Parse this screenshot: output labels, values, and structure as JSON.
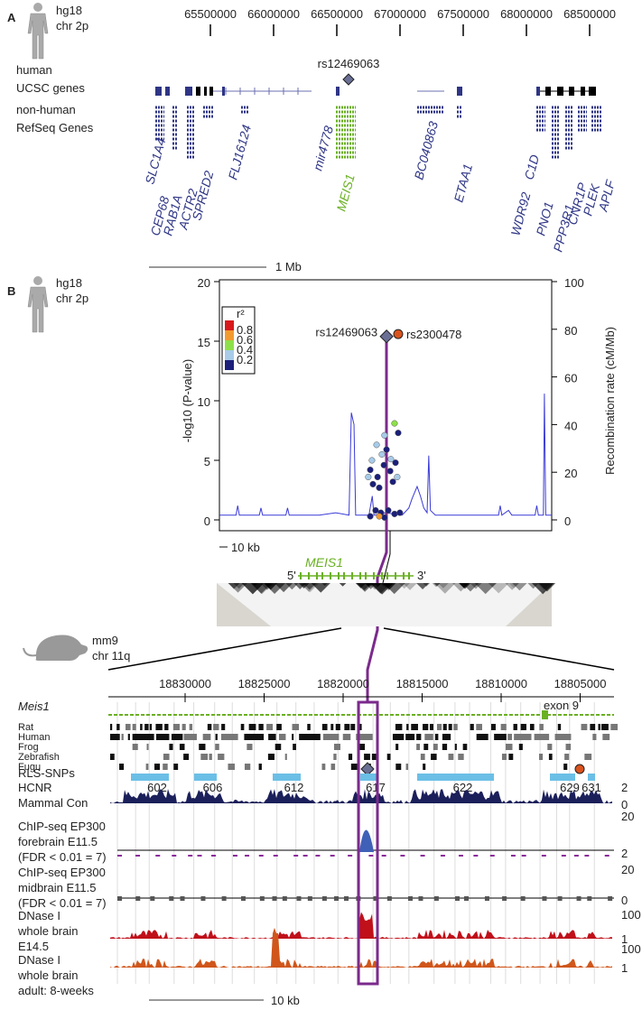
{
  "panel_a": {
    "label": "A",
    "assembly": "hg18",
    "chromosome": "chr 2p",
    "ticks": [
      65500000,
      66000000,
      66500000,
      67000000,
      67500000,
      68000000,
      68500000
    ],
    "snp": "rs12469063",
    "track_labels": [
      "human",
      "UCSC genes",
      "non-human",
      "RefSeq Genes"
    ],
    "genes": [
      "CEP68",
      "SLC1A4",
      "RAB1A",
      "ACTR2",
      "SPRED2",
      "FLJ16124",
      "mir4778",
      "MEIS1",
      "BC040863",
      "ETAA1",
      "WDR92",
      "C1D",
      "PNO1",
      "PPP3R1",
      "CNR1P",
      "PLEK",
      "APLF"
    ],
    "scale": "1 Mb"
  },
  "panel_b": {
    "label": "B",
    "assembly": "hg18",
    "chromosome": "chr 2p",
    "scale": "10 kb",
    "gene": "MEIS1",
    "five_prime": "5'",
    "three_prime": "3'"
  },
  "chart_data": {
    "type": "scatter",
    "y_label": "-log10 (P-value)",
    "y2_label": "Recombination rate (cM/Mb)",
    "xlim": [
      0,
      100
    ],
    "ylim": [
      0,
      20
    ],
    "yticks": [
      0,
      5,
      10,
      15,
      20
    ],
    "y2lim": [
      0,
      100
    ],
    "y2ticks": [
      0,
      20,
      40,
      60,
      80,
      100
    ],
    "legend": {
      "title": "r²",
      "labels": [
        0.8,
        0.6,
        0.4,
        0.2
      ],
      "colors": [
        "#d7191c",
        "#f29a2e",
        "#8ee04a",
        "#a8cbe8",
        "#1b1f7a"
      ]
    },
    "series": [
      {
        "color": "#1b1f7a",
        "x": [
          45.4,
          47.6,
          49.5,
          51.4,
          53.0,
          48.1,
          46.2,
          52.2,
          53.8,
          50.3,
          47.0,
          48.6,
          50.8,
          52.7,
          54.3,
          45.4,
          49.7
        ],
        "values": [
          4.2,
          3.6,
          4.6,
          4.1,
          4.8,
          2.7,
          3.0,
          3.2,
          7.3,
          5.9,
          0.8,
          0.6,
          0.8,
          0.5,
          0.6,
          0.3,
          0.2
        ]
      },
      {
        "color": "#a8cbe8",
        "x": [
          45.9,
          48.9,
          47.3,
          51.6,
          49.7,
          53.5,
          44.8
        ],
        "values": [
          5.0,
          5.5,
          6.3,
          5.1,
          7.1,
          3.6,
          3.6
        ]
      },
      {
        "color": "#8ee04a",
        "x": [
          52.7
        ],
        "values": [
          8.1
        ]
      },
      {
        "color": "#f29a2e",
        "x": [
          48.1
        ],
        "values": [
          0.3
        ]
      }
    ],
    "recombination": {
      "axis": "y2",
      "color": "#3a3ad8",
      "x": [
        0,
        5,
        5.5,
        6,
        12,
        12.5,
        13,
        20,
        20.5,
        21,
        30,
        35,
        39,
        39.7,
        40.5,
        41,
        45,
        46,
        46.5,
        50,
        55,
        57,
        58,
        59.5,
        60.5,
        61.5,
        62.5,
        63,
        63.5,
        65,
        75,
        84,
        84.5,
        85,
        87,
        88,
        95,
        95.5,
        96,
        97.5,
        97.8,
        98.2,
        100
      ],
      "values": [
        2,
        2,
        6,
        2,
        2,
        5,
        2,
        2,
        5,
        2,
        2,
        3,
        2,
        45,
        40,
        2,
        2,
        10,
        2,
        3,
        2,
        5,
        9,
        14,
        10,
        5,
        3,
        27,
        4,
        2,
        2,
        2,
        6,
        2,
        4,
        2,
        2,
        6,
        2,
        2,
        53,
        2,
        2
      ]
    },
    "highlights": [
      {
        "label": "rs12469063",
        "x": 50.3,
        "value": 15.4,
        "shape": "diamond",
        "color": "#6a7095"
      },
      {
        "label": "rs2300478",
        "x": 53.8,
        "value": 15.6,
        "shape": "circle",
        "color": "#d9531e"
      }
    ]
  },
  "panel_mouse": {
    "assembly": "mm9",
    "chromosome": "chr 11q",
    "ticks": [
      18830000,
      18825000,
      18820000,
      18815000,
      18810000,
      18805000
    ],
    "gene": "Meis1",
    "exon": "exon 9",
    "species": [
      "Rat",
      "Human",
      "Frog",
      "Zebrafish",
      "Fugu"
    ],
    "rls": "RLS-SNPs",
    "hcnr": "HCNR",
    "hcnr_ids": [
      602,
      606,
      612,
      617,
      622,
      629,
      631
    ],
    "mammal": "Mammal Con",
    "tracks": [
      {
        "lines": [
          "ChIP-seq EP300",
          "forebrain E11.5",
          "(FDR < 0.01 = 7)"
        ],
        "color": "#2a3d8f"
      },
      {
        "lines": [
          "ChIP-seq EP300",
          "midbrain E11.5",
          "(FDR < 0.01 = 7)"
        ],
        "color": "#444444"
      },
      {
        "lines": [
          "DNase I",
          "whole brain",
          "E14.5"
        ],
        "color": "#c0101a"
      },
      {
        "lines": [
          "DNase I",
          "whole brain",
          "adult: 8-weeks"
        ],
        "color": "#d0561b"
      }
    ],
    "scale_labels": [
      2,
      0,
      20,
      2,
      20,
      0,
      100,
      1,
      100,
      1
    ],
    "scale": "10 kb"
  }
}
